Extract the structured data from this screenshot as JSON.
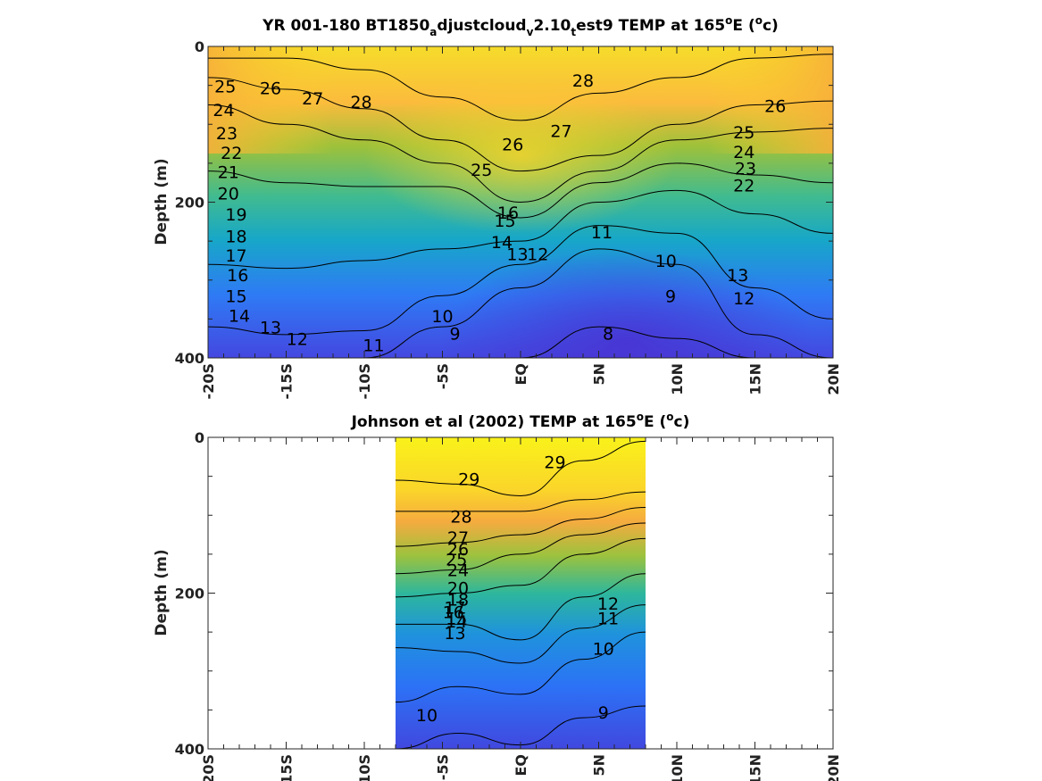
{
  "chart_data": [
    {
      "type": "heatmap",
      "title": {
        "main": "YR 001-180 BT1850",
        "sub1": "a",
        "mid1": "djustcloud",
        "sub2": "v",
        "mid2": "2.10",
        "sub3": "t",
        "mid3": "est9 TEMP at 165",
        "sup1": "o",
        "mid4": "E (",
        "sup2": "o",
        "end": "c)"
      },
      "ylabel": "Depth (m)",
      "xlabel": "",
      "xlim": [
        -20,
        20
      ],
      "ylim": [
        0,
        400
      ],
      "y_reversed": true,
      "x_ticks": [
        -20,
        -15,
        -10,
        -5,
        0,
        5,
        10,
        15,
        20
      ],
      "x_tick_labels": [
        "-20S",
        "-15S",
        "-10S",
        "-5S",
        "EQ",
        "5N",
        "10N",
        "15N",
        "20N"
      ],
      "y_ticks": [
        0,
        200,
        400
      ],
      "y_tick_labels": [
        "0",
        "200",
        "400"
      ],
      "data_x_range": [
        -20,
        20
      ],
      "colormap": "parula",
      "color_range": [
        8,
        29
      ],
      "x": [
        -20,
        -15,
        -10,
        -5,
        0,
        5,
        10,
        15,
        20
      ],
      "isotherms": [
        {
          "level": 28,
          "depth": [
            15,
            15,
            30,
            65,
            95,
            60,
            40,
            15,
            10
          ]
        },
        {
          "level": 26,
          "depth": [
            40,
            55,
            80,
            120,
            160,
            140,
            100,
            75,
            70
          ]
        },
        {
          "level": 24,
          "depth": [
            75,
            100,
            120,
            150,
            200,
            160,
            120,
            110,
            105
          ]
        },
        {
          "level": 20,
          "depth": [
            160,
            175,
            180,
            180,
            220,
            175,
            150,
            165,
            175
          ]
        },
        {
          "level": 16,
          "depth": [
            280,
            285,
            275,
            260,
            250,
            200,
            185,
            215,
            240
          ]
        },
        {
          "level": 12,
          "depth": [
            360,
            370,
            365,
            320,
            280,
            230,
            240,
            310,
            350
          ]
        },
        {
          "level": 10,
          "depth": [
            400,
            400,
            400,
            360,
            310,
            260,
            280,
            370,
            400
          ]
        },
        {
          "level": 8,
          "depth": [
            400,
            400,
            400,
            400,
            400,
            360,
            375,
            400,
            400
          ]
        }
      ],
      "contour_labels": [
        {
          "text": "25",
          "x": -18.9,
          "y": 53
        },
        {
          "text": "26",
          "x": -16.0,
          "y": 55
        },
        {
          "text": "27",
          "x": -13.3,
          "y": 68
        },
        {
          "text": "28",
          "x": -10.2,
          "y": 73
        },
        {
          "text": "28",
          "x": 4.0,
          "y": 45
        },
        {
          "text": "24",
          "x": -19.0,
          "y": 83
        },
        {
          "text": "23",
          "x": -18.8,
          "y": 113
        },
        {
          "text": "22",
          "x": -18.5,
          "y": 138
        },
        {
          "text": "21",
          "x": -18.7,
          "y": 163
        },
        {
          "text": "20",
          "x": -18.7,
          "y": 190
        },
        {
          "text": "19",
          "x": -18.2,
          "y": 217
        },
        {
          "text": "18",
          "x": -18.2,
          "y": 245
        },
        {
          "text": "17",
          "x": -18.2,
          "y": 270
        },
        {
          "text": "16",
          "x": -18.1,
          "y": 295
        },
        {
          "text": "15",
          "x": -18.2,
          "y": 322
        },
        {
          "text": "14",
          "x": -18.0,
          "y": 347
        },
        {
          "text": "13",
          "x": -16.0,
          "y": 362
        },
        {
          "text": "12",
          "x": -14.3,
          "y": 377
        },
        {
          "text": "11",
          "x": -9.4,
          "y": 385
        },
        {
          "text": "10",
          "x": -5.0,
          "y": 348
        },
        {
          "text": "9",
          "x": -4.2,
          "y": 370
        },
        {
          "text": "8",
          "x": 5.6,
          "y": 370
        },
        {
          "text": "27",
          "x": 2.6,
          "y": 110
        },
        {
          "text": "26",
          "x": -0.5,
          "y": 127
        },
        {
          "text": "25",
          "x": -2.5,
          "y": 160
        },
        {
          "text": "14",
          "x": -1.2,
          "y": 253
        },
        {
          "text": "13",
          "x": -0.2,
          "y": 268
        },
        {
          "text": "12",
          "x": 1.1,
          "y": 268
        },
        {
          "text": "15",
          "x": -1.0,
          "y": 225
        },
        {
          "text": "16",
          "x": -0.8,
          "y": 215
        },
        {
          "text": "11",
          "x": 5.2,
          "y": 240
        },
        {
          "text": "10",
          "x": 9.3,
          "y": 277
        },
        {
          "text": "9",
          "x": 9.6,
          "y": 322
        },
        {
          "text": "26",
          "x": 16.3,
          "y": 78
        },
        {
          "text": "25",
          "x": 14.3,
          "y": 112
        },
        {
          "text": "24",
          "x": 14.3,
          "y": 137
        },
        {
          "text": "23",
          "x": 14.4,
          "y": 158
        },
        {
          "text": "22",
          "x": 14.3,
          "y": 180
        },
        {
          "text": "13",
          "x": 13.9,
          "y": 295
        },
        {
          "text": "12",
          "x": 14.3,
          "y": 325
        }
      ]
    },
    {
      "type": "heatmap",
      "title": {
        "main": "Johnson et al (2002) TEMP at 165",
        "sup1": "o",
        "mid": "E (",
        "sup2": "o",
        "end": "c)"
      },
      "ylabel": "Depth (m)",
      "xlabel": "",
      "xlim": [
        -20,
        20
      ],
      "ylim": [
        0,
        400
      ],
      "y_reversed": true,
      "x_ticks": [
        -20,
        -15,
        -10,
        -5,
        0,
        5,
        10,
        15,
        20
      ],
      "x_tick_labels": [
        "-20S",
        "-15S",
        "-10S",
        "-5S",
        "EQ",
        "5N",
        "10N",
        "15N",
        "20N"
      ],
      "y_ticks": [
        0,
        200,
        400
      ],
      "y_tick_labels": [
        "0",
        "200",
        "400"
      ],
      "data_x_range": [
        -8,
        8
      ],
      "colormap": "parula",
      "color_range": [
        8,
        29.5
      ],
      "x": [
        -8,
        -4,
        0,
        4,
        8
      ],
      "isotherms": [
        {
          "level": 29,
          "depth": [
            55,
            60,
            75,
            30,
            5
          ]
        },
        {
          "level": 28,
          "depth": [
            95,
            95,
            95,
            80,
            70
          ]
        },
        {
          "level": 26,
          "depth": [
            140,
            135,
            125,
            105,
            90
          ]
        },
        {
          "level": 22,
          "depth": [
            175,
            170,
            150,
            125,
            110
          ]
        },
        {
          "level": 18,
          "depth": [
            205,
            200,
            190,
            150,
            130
          ]
        },
        {
          "level": 14,
          "depth": [
            240,
            240,
            260,
            205,
            175
          ]
        },
        {
          "level": 12,
          "depth": [
            270,
            275,
            290,
            245,
            215
          ]
        },
        {
          "level": 10,
          "depth": [
            340,
            320,
            330,
            285,
            250
          ]
        },
        {
          "level": 9,
          "depth": [
            400,
            380,
            395,
            360,
            345
          ]
        }
      ],
      "contour_labels": [
        {
          "text": "29",
          "x": -3.3,
          "y": 55
        },
        {
          "text": "29",
          "x": 2.2,
          "y": 33
        },
        {
          "text": "28",
          "x": -3.8,
          "y": 103
        },
        {
          "text": "27",
          "x": -4.0,
          "y": 130
        },
        {
          "text": "26",
          "x": -4.0,
          "y": 145
        },
        {
          "text": "25",
          "x": -4.1,
          "y": 158
        },
        {
          "text": "24",
          "x": -4.0,
          "y": 172
        },
        {
          "text": "20",
          "x": -4.0,
          "y": 195
        },
        {
          "text": "18",
          "x": -4.0,
          "y": 210
        },
        {
          "text": "17",
          "x": -4.2,
          "y": 220
        },
        {
          "text": "16",
          "x": -4.3,
          "y": 226
        },
        {
          "text": "15",
          "x": -4.1,
          "y": 234
        },
        {
          "text": "14",
          "x": -4.1,
          "y": 238
        },
        {
          "text": "13",
          "x": -4.2,
          "y": 253
        },
        {
          "text": "12",
          "x": 5.6,
          "y": 215
        },
        {
          "text": "11",
          "x": 5.6,
          "y": 234
        },
        {
          "text": "10",
          "x": 5.3,
          "y": 273
        },
        {
          "text": "10",
          "x": -6.0,
          "y": 358
        },
        {
          "text": "9",
          "x": 5.3,
          "y": 355
        }
      ]
    }
  ],
  "colors": {
    "colormap_stops": [
      "#3e26a8",
      "#4743e7",
      "#3070f9",
      "#1d8ce6",
      "#13a7ce",
      "#2bb8a8",
      "#5fc26e",
      "#a8c235",
      "#e4b633",
      "#fdc43a",
      "#f5e021",
      "#f9fb15"
    ]
  }
}
